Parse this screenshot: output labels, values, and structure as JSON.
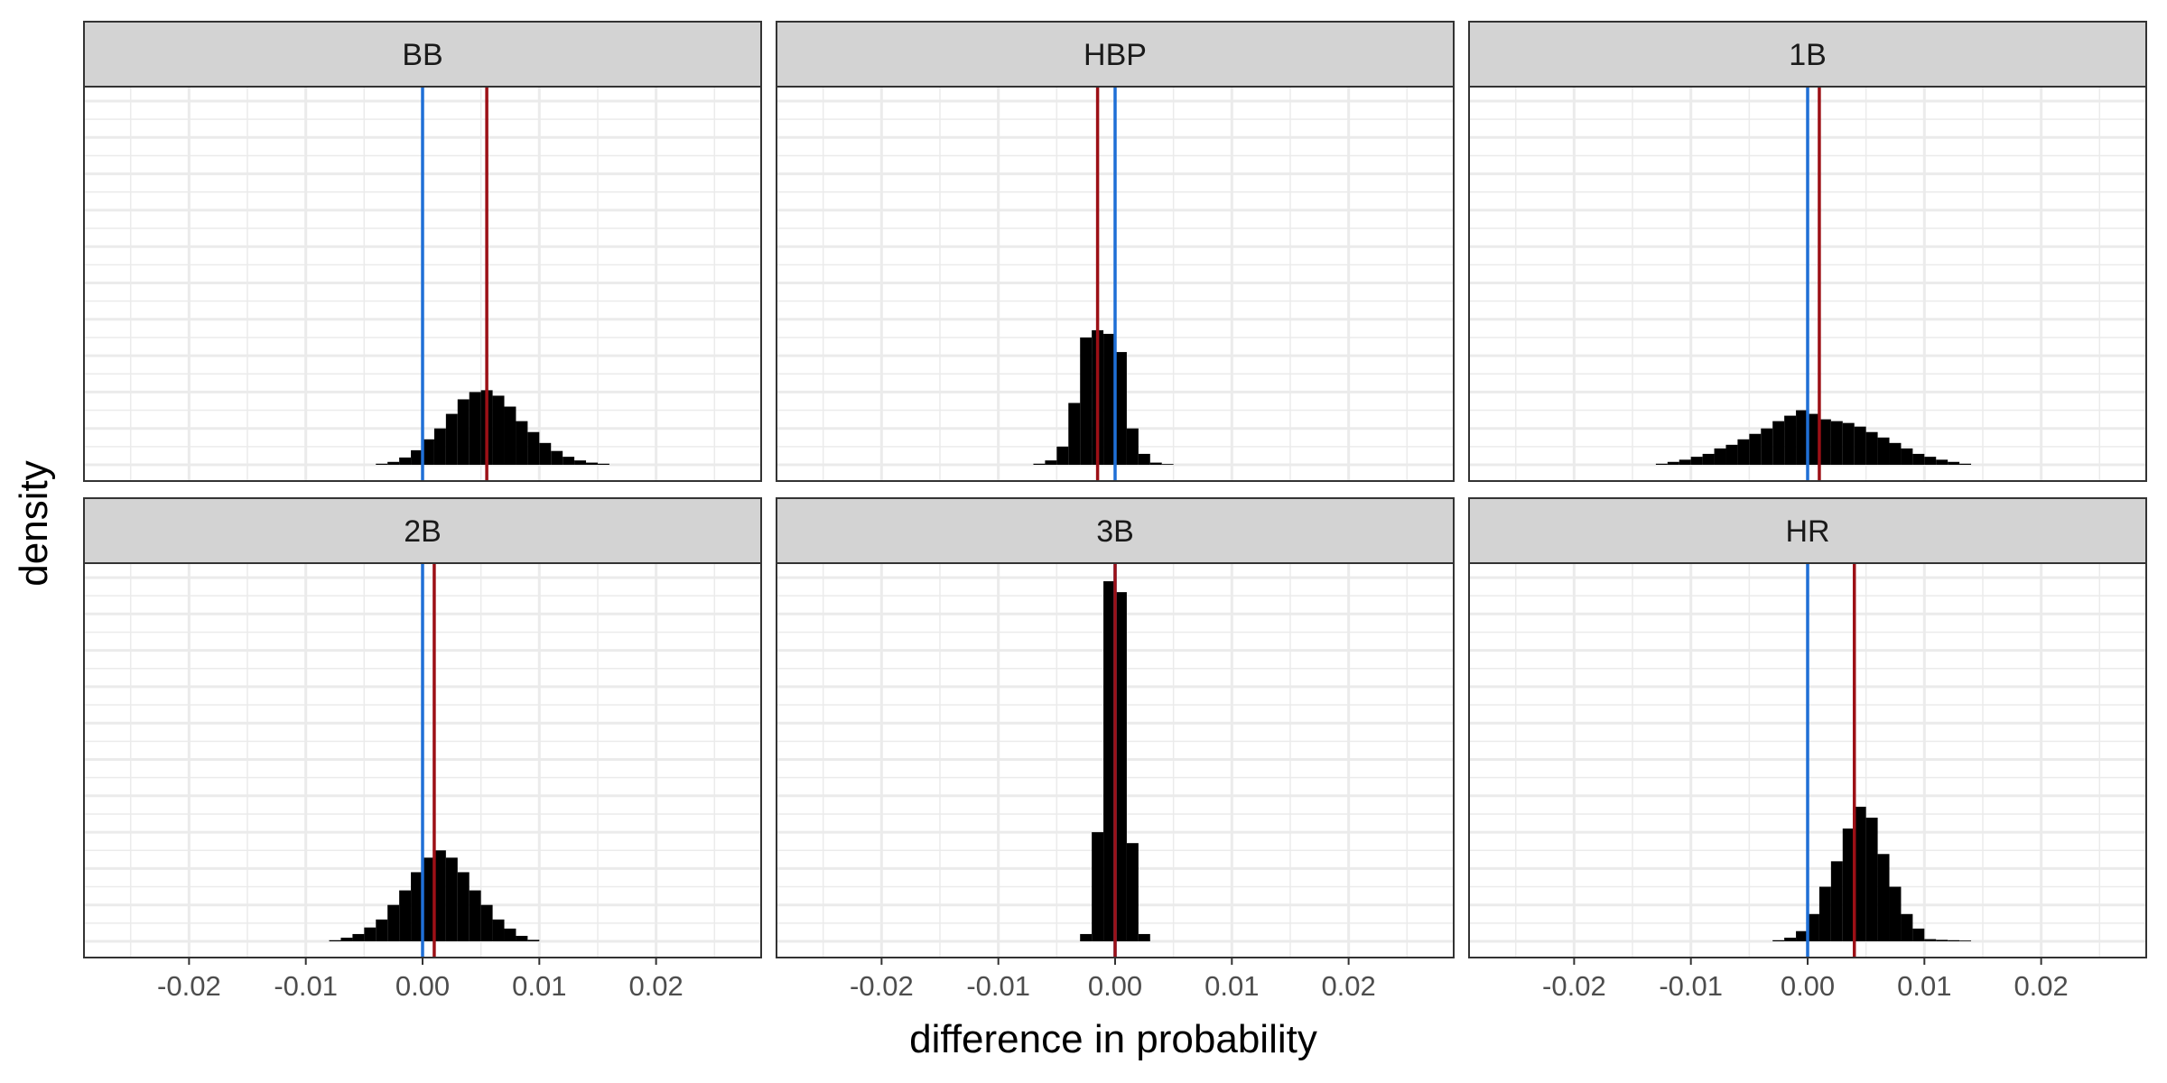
{
  "colors": {
    "zero_line": "#1f6fd6",
    "mean_line": "#9c1016",
    "bars": "#000000",
    "strip_fill": "#d3d3d3",
    "strip_border": "#333333",
    "grid": "#ebebeb",
    "panel_border": "#333333"
  },
  "chart_data": {
    "type": "bar",
    "subtype": "faceted histogram",
    "xlabel": "difference in probability",
    "ylabel": "density",
    "xlim": [
      -0.029,
      0.029
    ],
    "x_ticks": [
      -0.02,
      -0.01,
      0.0,
      0.01,
      0.02
    ],
    "x_tick_labels": [
      "-0.02",
      "-0.01",
      "0.00",
      "0.01",
      "0.02"
    ],
    "ylim": [
      0,
      1.0
    ],
    "y_axis_labels_shown": false,
    "bin_width": 0.001,
    "grid": true,
    "legend": "none",
    "facet_layout": {
      "rows": 2,
      "cols": 3
    },
    "panels": [
      {
        "label": "BB",
        "zero_line": 0.0,
        "mean_line": 0.0055,
        "bin_centers": [
          -0.0035,
          -0.0025,
          -0.0015,
          -0.0005,
          0.0005,
          0.0015,
          0.0025,
          0.0035,
          0.0045,
          0.0055,
          0.0065,
          0.0075,
          0.0085,
          0.0095,
          0.0105,
          0.0115,
          0.0125,
          0.0135,
          0.0145,
          0.0155
        ],
        "heights": [
          0.003,
          0.008,
          0.02,
          0.04,
          0.07,
          0.1,
          0.14,
          0.18,
          0.2,
          0.205,
          0.19,
          0.16,
          0.12,
          0.09,
          0.06,
          0.038,
          0.022,
          0.012,
          0.006,
          0.003
        ]
      },
      {
        "label": "HBP",
        "zero_line": 0.0,
        "mean_line": -0.0015,
        "bin_centers": [
          -0.0065,
          -0.0055,
          -0.0045,
          -0.0035,
          -0.0025,
          -0.0015,
          -0.0005,
          0.0005,
          0.0015,
          0.0025,
          0.0035,
          0.0045
        ],
        "heights": [
          0.003,
          0.012,
          0.05,
          0.17,
          0.35,
          0.37,
          0.36,
          0.31,
          0.1,
          0.03,
          0.006,
          0.002
        ]
      },
      {
        "label": "1B",
        "zero_line": 0.0,
        "mean_line": 0.001,
        "bin_centers": [
          -0.0125,
          -0.0115,
          -0.0105,
          -0.0095,
          -0.0085,
          -0.0075,
          -0.0065,
          -0.0055,
          -0.0045,
          -0.0035,
          -0.0025,
          -0.0015,
          -0.0005,
          0.0005,
          0.0015,
          0.0025,
          0.0035,
          0.0045,
          0.0055,
          0.0065,
          0.0075,
          0.0085,
          0.0095,
          0.0105,
          0.0115,
          0.0125,
          0.0135
        ],
        "heights": [
          0.003,
          0.008,
          0.014,
          0.022,
          0.03,
          0.045,
          0.055,
          0.07,
          0.085,
          0.1,
          0.12,
          0.135,
          0.15,
          0.14,
          0.125,
          0.12,
          0.115,
          0.105,
          0.09,
          0.075,
          0.06,
          0.045,
          0.03,
          0.022,
          0.014,
          0.008,
          0.003
        ]
      },
      {
        "label": "2B",
        "zero_line": 0.0,
        "mean_line": 0.001,
        "bin_centers": [
          -0.0075,
          -0.0065,
          -0.0055,
          -0.0045,
          -0.0035,
          -0.0025,
          -0.0015,
          -0.0005,
          0.0005,
          0.0015,
          0.0025,
          0.0035,
          0.0045,
          0.0055,
          0.0065,
          0.0075,
          0.0085,
          0.0095
        ],
        "heights": [
          0.003,
          0.01,
          0.02,
          0.038,
          0.06,
          0.1,
          0.14,
          0.19,
          0.23,
          0.25,
          0.23,
          0.19,
          0.14,
          0.1,
          0.06,
          0.035,
          0.015,
          0.004
        ]
      },
      {
        "label": "3B",
        "zero_line": 0.0,
        "mean_line": 0.0,
        "bin_centers": [
          -0.0025,
          -0.0015,
          -0.0005,
          0.0005,
          0.0015,
          0.0025
        ],
        "heights": [
          0.02,
          0.3,
          0.99,
          0.96,
          0.27,
          0.02
        ]
      },
      {
        "label": "HR",
        "zero_line": 0.0,
        "mean_line": 0.004,
        "bin_centers": [
          -0.0025,
          -0.0015,
          -0.0005,
          0.0005,
          0.0015,
          0.0025,
          0.0035,
          0.0045,
          0.0055,
          0.0065,
          0.0075,
          0.0085,
          0.0095,
          0.0105,
          0.0115,
          0.0125,
          0.0135
        ],
        "heights": [
          0.003,
          0.01,
          0.028,
          0.075,
          0.15,
          0.22,
          0.31,
          0.37,
          0.34,
          0.24,
          0.15,
          0.075,
          0.035,
          0.006,
          0.004,
          0.003,
          0.002
        ]
      }
    ]
  }
}
